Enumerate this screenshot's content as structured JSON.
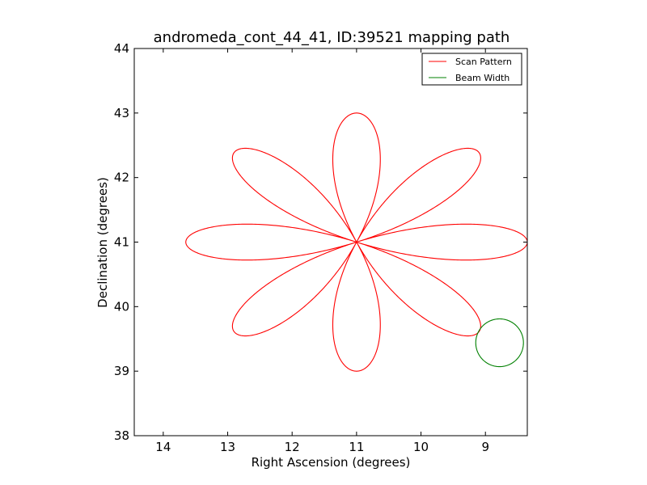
{
  "chart_data": {
    "type": "line",
    "title": "andromeda_cont_44_41, ID:39521 mapping path",
    "xlabel": "Right Ascension (degrees)",
    "ylabel": "Declination (degrees)",
    "xlim": [
      14.45,
      8.35
    ],
    "ylim": [
      38,
      44
    ],
    "x_inverted": true,
    "xticks": [
      14,
      13,
      12,
      11,
      10,
      9
    ],
    "yticks": [
      38,
      39,
      40,
      41,
      42,
      43,
      44
    ],
    "grid": false,
    "legend": "top-right",
    "series": [
      {
        "name": "Scan Pattern",
        "color": "#ff0000",
        "kind": "rose_curve",
        "center": [
          11.0,
          41.0
        ],
        "petals": 8,
        "ra_amplitude": 2.65,
        "dec_amplitude": 2.0,
        "start_angle_deg": 180
      },
      {
        "name": "Beam Width",
        "color": "#008000",
        "kind": "circle",
        "center": [
          8.78,
          39.44
        ],
        "radius_ra": 0.37,
        "radius_dec": 0.37
      }
    ]
  }
}
